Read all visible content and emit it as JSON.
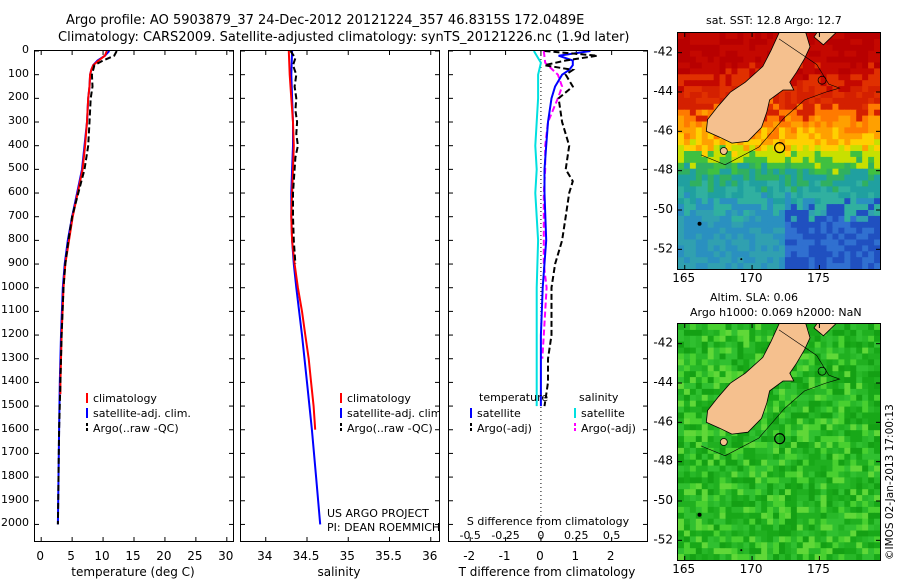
{
  "header": {
    "line1": "Argo profile: AO 5903879_37 24-Dec-2012 20121224_357 46.8315S 172.0489E",
    "line2": "Climatology: CARS2009. Satellite-adjusted climatology: synTS_20121226.nc (1.9d later)"
  },
  "depth_ticks": [
    "0",
    "100",
    "200",
    "300",
    "400",
    "500",
    "600",
    "700",
    "800",
    "900",
    "1000",
    "1100",
    "1200",
    "1300",
    "1400",
    "1500",
    "1600",
    "1700",
    "1800",
    "1900",
    "2000"
  ],
  "colors": {
    "clim": "#ff0000",
    "sat": "#0000ff",
    "argo": "#000000",
    "cyan": "#00e0e0",
    "magenta": "#ff00ff",
    "land": "#f5c08e"
  },
  "chart_data": [
    {
      "type": "line",
      "name": "temperature",
      "xlabel": "temperature (deg C)",
      "xlim": [
        -1,
        31
      ],
      "ylim": [
        2070,
        0
      ],
      "xticks": [
        0,
        5,
        10,
        15,
        20,
        25,
        30
      ],
      "xtick_labels": [
        "0",
        "5",
        "10",
        "15",
        "20",
        "25",
        "30"
      ],
      "legend": [
        "climatology",
        "satellite-adj. clim.",
        "Argo(..raw -QC)"
      ],
      "series": [
        {
          "name": "climatology",
          "depth": [
            0,
            20,
            40,
            60,
            80,
            100,
            150,
            200,
            300,
            400,
            500,
            600,
            700,
            800,
            900,
            1000,
            1200,
            1400,
            1450
          ],
          "values": [
            10.6,
            10.3,
            9.3,
            8.4,
            8.1,
            7.9,
            7.8,
            7.6,
            7.4,
            7.1,
            6.7,
            5.9,
            5.1,
            4.5,
            3.9,
            3.6,
            3.3,
            3.1,
            3.1
          ]
        },
        {
          "name": "satellite",
          "depth": [
            0,
            20,
            40,
            60,
            80,
            100,
            150,
            200,
            300,
            400,
            500,
            600,
            700,
            800,
            900,
            1000,
            1200,
            1400,
            1600,
            1800,
            2000
          ],
          "values": [
            11.0,
            10.3,
            9.1,
            8.4,
            8.1,
            7.9,
            7.8,
            7.6,
            7.4,
            7.0,
            6.6,
            5.8,
            5.0,
            4.3,
            3.8,
            3.5,
            3.2,
            3.0,
            2.9,
            2.8,
            2.7
          ]
        },
        {
          "name": "argo",
          "depth": [
            0,
            20,
            40,
            60,
            80,
            100,
            150,
            200,
            300,
            400,
            500,
            600,
            700,
            800,
            900,
            1000,
            1200,
            1400,
            1600,
            1800,
            2000
          ],
          "values": [
            12.2,
            11.8,
            10.0,
            8.6,
            8.4,
            8.2,
            8.3,
            8.0,
            7.8,
            7.6,
            7.0,
            6.0,
            5.0,
            4.4,
            3.9,
            3.6,
            3.3,
            3.1,
            2.9,
            2.8,
            2.7
          ]
        }
      ]
    },
    {
      "type": "line",
      "name": "salinity",
      "xlabel": "salinity",
      "xlim": [
        33.7,
        36.1
      ],
      "ylim": [
        2070,
        0
      ],
      "xticks": [
        34,
        34.5,
        35,
        35.5,
        36
      ],
      "xtick_labels": [
        "34",
        "34.5",
        "35",
        "35.5",
        "36"
      ],
      "legend": [
        "climatology",
        "satellite-adj. clim.",
        "Argo(..raw -QC)"
      ],
      "annotation": [
        "US ARGO PROJECT",
        "PI: DEAN ROEMMICH"
      ],
      "series": [
        {
          "name": "climatology",
          "depth": [
            0,
            100,
            200,
            300,
            400,
            500,
            600,
            700,
            800,
            900,
            1000,
            1100,
            1200,
            1300,
            1400,
            1500,
            1600
          ],
          "values": [
            34.28,
            34.29,
            34.31,
            34.33,
            34.34,
            34.33,
            34.32,
            34.31,
            34.32,
            34.35,
            34.39,
            34.44,
            34.48,
            34.52,
            34.55,
            34.58,
            34.6
          ]
        },
        {
          "name": "satellite",
          "depth": [
            0,
            100,
            200,
            300,
            400,
            500,
            600,
            700,
            800,
            900,
            1000,
            1200,
            1400,
            1600,
            1800,
            2000
          ],
          "values": [
            34.32,
            34.31,
            34.32,
            34.33,
            34.33,
            34.32,
            34.31,
            34.31,
            34.32,
            34.34,
            34.37,
            34.44,
            34.5,
            34.56,
            34.61,
            34.66
          ]
        },
        {
          "name": "argo",
          "depth": [
            0,
            30,
            60,
            100,
            150,
            200,
            250,
            300,
            350,
            400,
            450,
            500,
            550,
            600,
            700,
            800,
            900
          ],
          "values": [
            34.3,
            34.36,
            34.33,
            34.37,
            34.35,
            34.37,
            34.36,
            34.38,
            34.37,
            34.39,
            34.36,
            34.35,
            34.34,
            34.33,
            34.33,
            34.34,
            34.36
          ]
        }
      ]
    },
    {
      "type": "line",
      "name": "difference",
      "xlabel": "T difference from climatology",
      "xlabel_top": "S difference from climatology",
      "xlim": [
        -2.6,
        3
      ],
      "ylim": [
        2070,
        0
      ],
      "xticks": [
        -2,
        -1,
        0,
        1,
        2
      ],
      "xtick_labels": [
        "-2",
        "-1",
        "0",
        "1",
        "2"
      ],
      "sticks": [
        -0.5,
        -0.25,
        0,
        0.25,
        0.5
      ],
      "stick_labels": [
        "-0.5",
        "-0.25",
        "0",
        "0.25",
        "0.5"
      ],
      "legend_title_t": "temperature",
      "legend_title_s": "salinity",
      "legend_t": [
        "satellite",
        "Argo(-adj)"
      ],
      "legend_s": [
        "satellite",
        "Argo(-adj)"
      ],
      "series": [
        {
          "name": "T satellite",
          "depth": [
            0,
            20,
            40,
            60,
            80,
            100,
            150,
            200,
            300,
            400,
            500,
            600,
            800,
            1000,
            1200,
            1500
          ],
          "values": [
            1.4,
            0.5,
            0.9,
            0.9,
            0.8,
            0.6,
            0.4,
            0.3,
            0.2,
            0.15,
            0.1,
            0.1,
            0.15,
            0.05,
            0.0,
            0.0
          ]
        },
        {
          "name": "T argo",
          "depth": [
            0,
            20,
            40,
            60,
            80,
            100,
            150,
            200,
            300,
            400,
            500,
            550,
            600,
            700,
            800,
            900,
            1000,
            1100,
            1200,
            1300,
            1400,
            1500
          ],
          "values": [
            0.1,
            1.6,
            0.7,
            0.1,
            0.9,
            0.7,
            0.9,
            0.5,
            0.6,
            0.8,
            0.7,
            0.9,
            0.8,
            0.7,
            0.6,
            0.4,
            0.3,
            0.3,
            0.3,
            0.2,
            0.2,
            0.1
          ]
        },
        {
          "name": "S satellite",
          "depth": [
            0,
            50,
            100,
            200,
            300,
            400,
            500,
            600,
            700,
            800,
            1000,
            1200,
            1500
          ],
          "values": [
            -0.05,
            0.0,
            -0.02,
            -0.02,
            -0.03,
            -0.04,
            -0.03,
            -0.04,
            -0.03,
            -0.02,
            -0.03,
            -0.03,
            -0.03
          ]
        },
        {
          "name": "S argo",
          "depth": [
            0,
            50,
            100,
            150,
            200,
            300,
            400,
            500,
            600,
            700,
            800,
            900,
            1000,
            1100,
            1200,
            1300
          ],
          "values": [
            0.02,
            0.03,
            0.12,
            0.15,
            0.12,
            0.05,
            0.03,
            0.03,
            0.02,
            0.02,
            0.02,
            0.02,
            0.04,
            0.03,
            0.02,
            0.01
          ]
        }
      ]
    },
    {
      "type": "heatmap",
      "name": "sst map",
      "title": "sat. SST: 12.8 Argo: 12.7",
      "xlim": [
        164.5,
        179.5
      ],
      "ylim": [
        -53,
        -41
      ],
      "xticks": [
        165,
        170,
        175
      ],
      "xtick_labels": [
        "165",
        "170",
        "175"
      ],
      "yticks": [
        -42,
        -44,
        -46,
        -48,
        -50,
        -52
      ],
      "ytick_labels": [
        "-42",
        "-44",
        "-46",
        "-48",
        "-50",
        "-52"
      ]
    },
    {
      "type": "heatmap",
      "name": "sla map",
      "title1": "Altim. SLA: 0.06",
      "title2": "Argo h1000: 0.069 h2000: NaN",
      "xlim": [
        164.5,
        179.5
      ],
      "ylim": [
        -53,
        -41
      ],
      "xticks": [
        165,
        170,
        175
      ],
      "xtick_labels": [
        "165",
        "170",
        "175"
      ],
      "yticks": [
        -42,
        -44,
        -46,
        -48,
        -50,
        -52
      ],
      "ytick_labels": [
        "-42",
        "-44",
        "-46",
        "-48",
        "-50",
        "-52"
      ]
    }
  ],
  "stamp": "©IMOS 02-Jan-2013 17:00:13"
}
